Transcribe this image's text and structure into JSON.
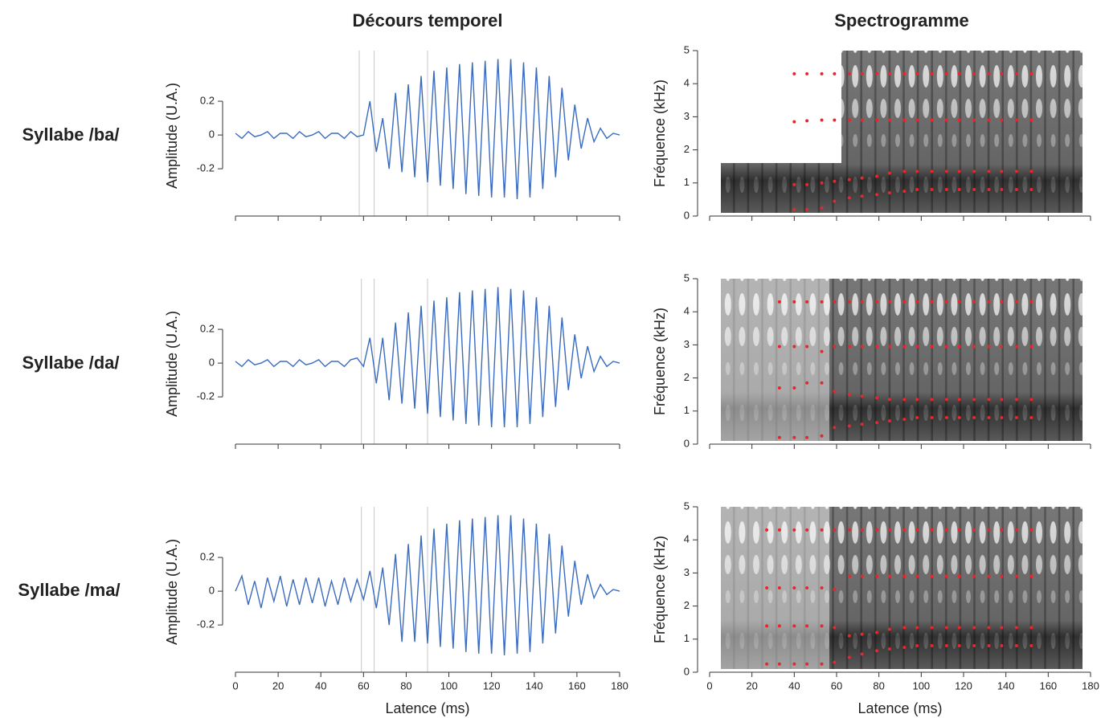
{
  "columns": [
    "Décours temporel",
    "Spectrogramme"
  ],
  "rows": [
    "Syllabe /ba/",
    "Syllabe /da/",
    "Syllabe /ma/"
  ],
  "chart_data": [
    {
      "type": "line",
      "ylabel": "Amplitude (U.A.)",
      "xlim": [
        0,
        180
      ],
      "ylim": [
        -0.48,
        0.5
      ],
      "xticks": [
        0,
        20,
        40,
        60,
        80,
        100,
        120,
        140,
        160,
        180
      ],
      "yticks": [
        -0.2,
        0,
        0.2
      ],
      "markers": [
        58,
        65,
        90
      ],
      "color": "#3a6bbf",
      "x": [
        0,
        3,
        6,
        9,
        12,
        15,
        18,
        21,
        24,
        27,
        30,
        33,
        36,
        39,
        42,
        45,
        48,
        51,
        54,
        57,
        60,
        63,
        66,
        69,
        72,
        75,
        78,
        81,
        84,
        87,
        90,
        93,
        96,
        99,
        102,
        105,
        108,
        111,
        114,
        117,
        120,
        123,
        126,
        129,
        132,
        135,
        138,
        141,
        144,
        147,
        150,
        153,
        156,
        159,
        162,
        165,
        168,
        171,
        174,
        177,
        180
      ],
      "values": [
        0.01,
        -0.02,
        0.02,
        -0.01,
        0.0,
        0.02,
        -0.02,
        0.01,
        0.01,
        -0.02,
        0.02,
        -0.01,
        0.0,
        0.02,
        -0.02,
        0.01,
        0.01,
        -0.02,
        0.02,
        -0.01,
        0.0,
        0.2,
        -0.1,
        0.1,
        -0.2,
        0.25,
        -0.22,
        0.3,
        -0.25,
        0.35,
        -0.28,
        0.38,
        -0.3,
        0.4,
        -0.32,
        0.42,
        -0.35,
        0.43,
        -0.36,
        0.44,
        -0.37,
        0.45,
        -0.37,
        0.45,
        -0.38,
        0.43,
        -0.37,
        0.4,
        -0.32,
        0.35,
        -0.25,
        0.28,
        -0.15,
        0.18,
        -0.08,
        0.1,
        -0.04,
        0.04,
        -0.02,
        0.01,
        0.0
      ]
    },
    {
      "type": "scatter",
      "ylabel": "Fréquence (kHz)",
      "xlim": [
        0,
        180
      ],
      "ylim": [
        0,
        5
      ],
      "xticks": [
        0,
        20,
        40,
        60,
        80,
        100,
        120,
        140,
        160,
        180
      ],
      "yticks": [
        0,
        1,
        2,
        3,
        4,
        5
      ],
      "x": [
        27,
        33,
        40,
        46,
        53,
        59,
        66,
        72,
        79,
        85,
        92,
        98,
        105,
        112,
        118,
        125,
        132,
        138,
        145,
        152
      ],
      "series": [
        {
          "color": "#e8262b",
          "values": [
            null,
            null,
            0.2,
            0.2,
            0.25,
            0.45,
            0.55,
            0.6,
            0.65,
            0.7,
            0.75,
            0.8,
            0.8,
            0.8,
            0.8,
            0.8,
            0.8,
            0.8,
            0.8,
            0.8
          ]
        },
        {
          "color": "#e8262b",
          "values": [
            null,
            null,
            0.95,
            0.95,
            1.0,
            1.05,
            1.1,
            1.15,
            1.2,
            1.3,
            1.35,
            1.35,
            1.35,
            1.35,
            1.35,
            1.35,
            1.35,
            1.35,
            1.35,
            1.35
          ]
        },
        {
          "color": "#e8262b",
          "values": [
            null,
            null,
            2.85,
            2.88,
            2.9,
            2.9,
            2.9,
            2.9,
            2.9,
            2.9,
            2.9,
            2.9,
            2.9,
            2.9,
            2.9,
            2.9,
            2.9,
            2.9,
            2.9,
            2.9
          ]
        },
        {
          "color": "#e8262b",
          "values": [
            null,
            null,
            4.3,
            4.3,
            4.3,
            4.3,
            4.3,
            4.3,
            4.3,
            4.3,
            4.3,
            4.3,
            4.3,
            4.3,
            4.3,
            4.3,
            4.3,
            4.3,
            4.3,
            4.3
          ]
        }
      ]
    },
    {
      "type": "line",
      "ylabel": "Amplitude (U.A.)",
      "xlim": [
        0,
        180
      ],
      "ylim": [
        -0.48,
        0.5
      ],
      "xticks": [
        0,
        20,
        40,
        60,
        80,
        100,
        120,
        140,
        160,
        180
      ],
      "yticks": [
        -0.2,
        0,
        0.2
      ],
      "markers": [
        59,
        65,
        90
      ],
      "color": "#3a6bbf",
      "x": [
        0,
        3,
        6,
        9,
        12,
        15,
        18,
        21,
        24,
        27,
        30,
        33,
        36,
        39,
        42,
        45,
        48,
        51,
        54,
        57,
        60,
        63,
        66,
        69,
        72,
        75,
        78,
        81,
        84,
        87,
        90,
        93,
        96,
        99,
        102,
        105,
        108,
        111,
        114,
        117,
        120,
        123,
        126,
        129,
        132,
        135,
        138,
        141,
        144,
        147,
        150,
        153,
        156,
        159,
        162,
        165,
        168,
        171,
        174,
        177,
        180
      ],
      "values": [
        0.01,
        -0.02,
        0.02,
        -0.01,
        0.0,
        0.02,
        -0.02,
        0.01,
        0.01,
        -0.02,
        0.02,
        -0.01,
        0.0,
        0.02,
        -0.02,
        0.01,
        0.01,
        -0.02,
        0.02,
        0.03,
        -0.02,
        0.15,
        -0.12,
        0.15,
        -0.22,
        0.24,
        -0.24,
        0.3,
        -0.27,
        0.34,
        -0.3,
        0.37,
        -0.32,
        0.39,
        -0.34,
        0.42,
        -0.36,
        0.43,
        -0.37,
        0.44,
        -0.38,
        0.45,
        -0.38,
        0.44,
        -0.38,
        0.43,
        -0.36,
        0.39,
        -0.32,
        0.34,
        -0.26,
        0.27,
        -0.16,
        0.17,
        -0.09,
        0.1,
        -0.05,
        0.04,
        -0.02,
        0.01,
        0.0
      ]
    },
    {
      "type": "scatter",
      "ylabel": "Fréquence (kHz)",
      "xlim": [
        0,
        180
      ],
      "ylim": [
        0,
        5
      ],
      "xticks": [
        0,
        20,
        40,
        60,
        80,
        100,
        120,
        140,
        160,
        180
      ],
      "yticks": [
        0,
        1,
        2,
        3,
        4,
        5
      ],
      "x": [
        27,
        33,
        40,
        46,
        53,
        59,
        66,
        72,
        79,
        85,
        92,
        98,
        105,
        112,
        118,
        125,
        132,
        138,
        145,
        152
      ],
      "series": [
        {
          "color": "#e8262b",
          "values": [
            null,
            0.2,
            0.2,
            0.2,
            0.25,
            0.5,
            0.55,
            0.6,
            0.65,
            0.7,
            0.75,
            0.8,
            0.8,
            0.8,
            0.8,
            0.8,
            0.8,
            0.8,
            0.8,
            0.8
          ]
        },
        {
          "color": "#e8262b",
          "values": [
            null,
            1.7,
            1.7,
            1.85,
            1.85,
            1.6,
            1.5,
            1.45,
            1.4,
            1.35,
            1.35,
            1.35,
            1.35,
            1.35,
            1.35,
            1.35,
            1.35,
            1.35,
            1.35,
            1.35
          ]
        },
        {
          "color": "#e8262b",
          "values": [
            null,
            2.95,
            2.95,
            2.95,
            2.8,
            2.95,
            2.95,
            2.95,
            2.95,
            2.95,
            2.95,
            2.95,
            2.95,
            2.95,
            2.95,
            2.95,
            2.95,
            2.95,
            2.95,
            2.95
          ]
        },
        {
          "color": "#e8262b",
          "values": [
            null,
            4.3,
            4.3,
            4.3,
            4.3,
            4.3,
            4.3,
            4.3,
            4.3,
            4.3,
            4.3,
            4.3,
            4.3,
            4.3,
            4.3,
            4.3,
            4.3,
            4.3,
            4.3,
            4.3
          ]
        }
      ]
    },
    {
      "type": "line",
      "ylabel": "Amplitude (U.A.)",
      "xlabel": "Latence (ms)",
      "xlim": [
        0,
        180
      ],
      "ylim": [
        -0.48,
        0.5
      ],
      "xticks": [
        0,
        20,
        40,
        60,
        80,
        100,
        120,
        140,
        160,
        180
      ],
      "yticks": [
        -0.2,
        0,
        0.2
      ],
      "markers": [
        59,
        65,
        90
      ],
      "color": "#3a6bbf",
      "x": [
        0,
        3,
        6,
        9,
        12,
        15,
        18,
        21,
        24,
        27,
        30,
        33,
        36,
        39,
        42,
        45,
        48,
        51,
        54,
        57,
        60,
        63,
        66,
        69,
        72,
        75,
        78,
        81,
        84,
        87,
        90,
        93,
        96,
        99,
        102,
        105,
        108,
        111,
        114,
        117,
        120,
        123,
        126,
        129,
        132,
        135,
        138,
        141,
        144,
        147,
        150,
        153,
        156,
        159,
        162,
        165,
        168,
        171,
        174,
        177,
        180
      ],
      "values": [
        0.0,
        0.09,
        -0.08,
        0.06,
        -0.1,
        0.08,
        -0.06,
        0.09,
        -0.09,
        0.07,
        -0.08,
        0.08,
        -0.07,
        0.08,
        -0.09,
        0.06,
        -0.08,
        0.08,
        -0.06,
        0.07,
        -0.05,
        0.12,
        -0.1,
        0.14,
        -0.2,
        0.22,
        -0.3,
        0.28,
        -0.3,
        0.33,
        -0.31,
        0.37,
        -0.33,
        0.4,
        -0.34,
        0.42,
        -0.36,
        0.43,
        -0.37,
        0.44,
        -0.37,
        0.45,
        -0.38,
        0.45,
        -0.37,
        0.43,
        -0.36,
        0.4,
        -0.31,
        0.34,
        -0.25,
        0.27,
        -0.15,
        0.18,
        -0.08,
        0.1,
        -0.04,
        0.04,
        -0.02,
        0.01,
        0.0
      ]
    },
    {
      "type": "scatter",
      "ylabel": "Fréquence (kHz)",
      "xlabel": "Latence (ms)",
      "xlim": [
        0,
        180
      ],
      "ylim": [
        0,
        5
      ],
      "xticks": [
        0,
        20,
        40,
        60,
        80,
        100,
        120,
        140,
        160,
        180
      ],
      "yticks": [
        0,
        1,
        2,
        3,
        4,
        5
      ],
      "x": [
        27,
        33,
        40,
        46,
        53,
        59,
        66,
        72,
        79,
        85,
        92,
        98,
        105,
        112,
        118,
        125,
        132,
        138,
        145,
        152
      ],
      "series": [
        {
          "color": "#e8262b",
          "values": [
            0.25,
            0.25,
            0.25,
            0.25,
            0.25,
            0.3,
            0.45,
            0.55,
            0.65,
            0.7,
            0.75,
            0.8,
            0.8,
            0.8,
            0.8,
            0.8,
            0.8,
            0.8,
            0.8,
            0.8
          ]
        },
        {
          "color": "#e8262b",
          "values": [
            1.4,
            1.4,
            1.4,
            1.4,
            1.4,
            1.35,
            1.1,
            1.15,
            1.2,
            1.3,
            1.35,
            1.35,
            1.35,
            1.35,
            1.35,
            1.35,
            1.35,
            1.35,
            1.35,
            1.35
          ]
        },
        {
          "color": "#e8262b",
          "values": [
            2.55,
            2.55,
            2.55,
            2.55,
            2.55,
            2.5,
            2.9,
            2.9,
            2.9,
            2.9,
            2.9,
            2.9,
            2.9,
            2.9,
            2.9,
            2.9,
            2.9,
            2.9,
            2.9,
            2.9
          ]
        },
        {
          "color": "#e8262b",
          "values": [
            4.3,
            4.3,
            4.3,
            4.3,
            4.3,
            4.3,
            4.3,
            4.3,
            4.3,
            4.3,
            4.3,
            4.3,
            4.3,
            4.3,
            4.3,
            4.3,
            4.3,
            4.3,
            4.3,
            4.3
          ]
        }
      ]
    }
  ]
}
